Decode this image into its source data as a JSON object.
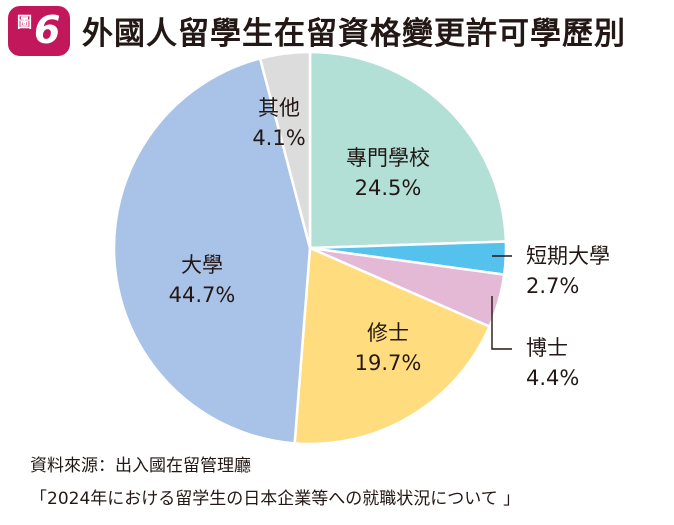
{
  "figure": {
    "label": "圖",
    "number": "6"
  },
  "title": "外國人留學生在留資格變更許可學歷別",
  "chart_data": {
    "type": "pie",
    "title": "外國人留學生在留資格變更許可學歷別",
    "slices": [
      {
        "label": "專門學校",
        "value": 24.5,
        "value_label": "24.5%",
        "color": "#b3e0d6"
      },
      {
        "label": "短期大學",
        "value": 2.7,
        "value_label": "2.7%",
        "color": "#55c2ee"
      },
      {
        "label": "博士",
        "value": 4.4,
        "value_label": "4.4%",
        "color": "#e3b9d6"
      },
      {
        "label": "修士",
        "value": 19.7,
        "value_label": "19.7%",
        "color": "#ffdd7f"
      },
      {
        "label": "大學",
        "value": 44.7,
        "value_label": "44.7%",
        "color": "#a9c3e8"
      },
      {
        "label": "其他",
        "value": 4.1,
        "value_label": "4.1%",
        "color": "#dcdcdc"
      }
    ],
    "start_angle": "12 o'clock",
    "direction": "clockwise"
  },
  "source": {
    "line1": "資料來源：出入國在留管理廳",
    "line2": "「2024年における留学生の日本企業等への就職状況について 」"
  }
}
